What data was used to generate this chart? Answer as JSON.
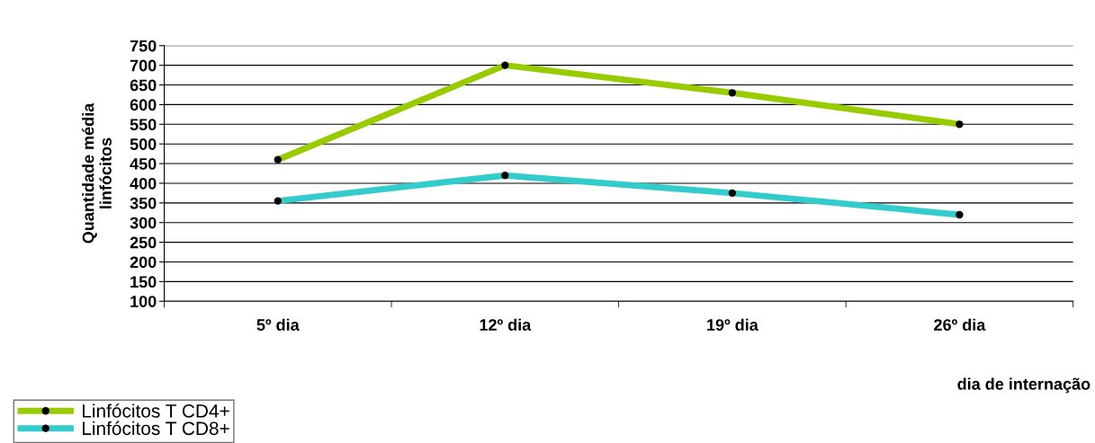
{
  "chart_data": {
    "type": "line",
    "xlabel": "dia de internação",
    "ylabel": "Quantidade média\nlinfócitos",
    "categories": [
      "5º dia",
      "12º dia",
      "19º dia",
      "26º dia"
    ],
    "ylim": [
      100,
      750
    ],
    "yticks": [
      100,
      150,
      200,
      250,
      300,
      350,
      400,
      450,
      500,
      550,
      600,
      650,
      700,
      750
    ],
    "grid": "y",
    "legend": "bottom left",
    "marker": "circle",
    "line_style": "solid",
    "series": [
      {
        "name": "Linfócitos T CD4+",
        "color": "#99cc00",
        "values": [
          460,
          700,
          630,
          550
        ]
      },
      {
        "name": "Linfócitos T CD8+",
        "color": "#33cccc",
        "values": [
          355,
          420,
          375,
          320
        ]
      }
    ]
  }
}
